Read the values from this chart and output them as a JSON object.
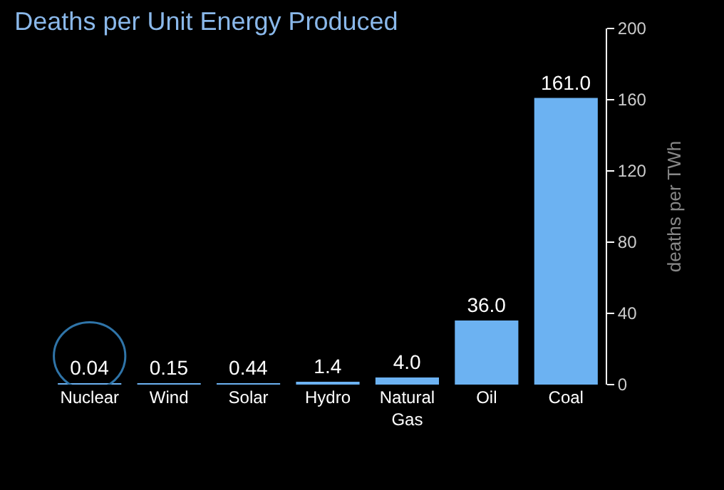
{
  "chart_data": {
    "type": "bar",
    "title": "Deaths per Unit Energy Produced",
    "ylabel": "deaths per TWh",
    "categories": [
      "Nuclear",
      "Wind",
      "Solar",
      "Hydro",
      "Natural Gas",
      "Oil",
      "Coal"
    ],
    "values": [
      0.04,
      0.15,
      0.44,
      1.4,
      4.0,
      36.0,
      161.0
    ],
    "value_labels": [
      "0.04",
      "0.15",
      "0.44",
      "1.4",
      "4.0",
      "36.0",
      "161.0"
    ],
    "color": "#6cb2f2",
    "ylim": [
      0,
      200
    ],
    "yticks": [
      0,
      40,
      80,
      120,
      160,
      200
    ],
    "grid": false,
    "legend": false
  }
}
